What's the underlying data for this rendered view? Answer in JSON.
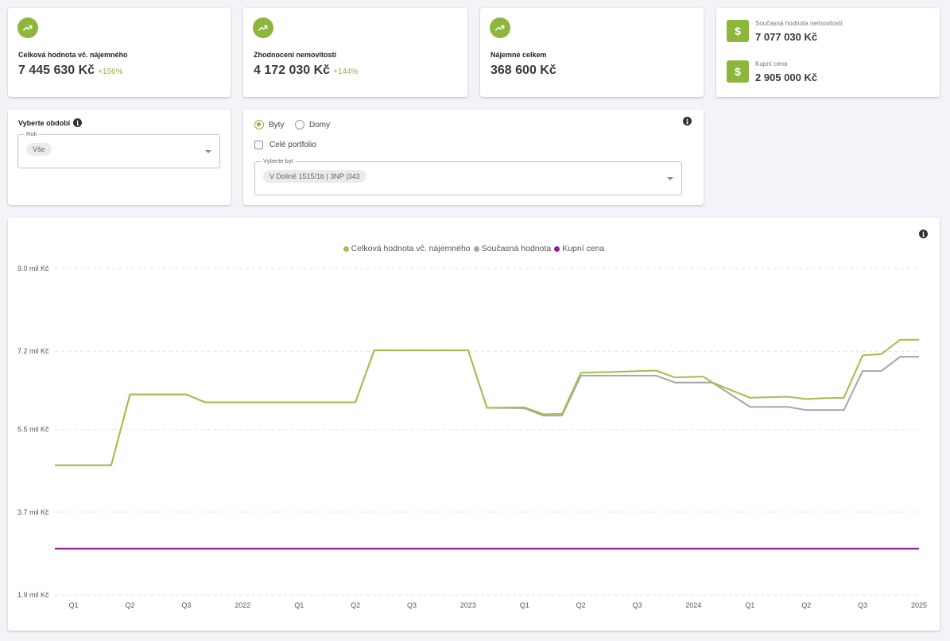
{
  "kpi_cards": [
    {
      "label": "Celková hodnota vč. nájemného",
      "value": "7 445 630 Kč",
      "change": "+156%"
    },
    {
      "label": "Zhodnocení nemovitostí",
      "value": "4 172 030 Kč",
      "change": "+144%"
    },
    {
      "label": "Nájemné celkem",
      "value": "368 600 Kč",
      "change": ""
    }
  ],
  "summary": {
    "current_label": "Současná hodnota nemovitostí",
    "current_value": "7 077 030 Kč",
    "purchase_label": "Kupní cena",
    "purchase_value": "2 905 000 Kč"
  },
  "period": {
    "title": "Vyberte období",
    "field_label": "Rok",
    "selected": "Vše"
  },
  "property_filter": {
    "type_options": [
      {
        "label": "Byty",
        "selected": true
      },
      {
        "label": "Domy",
        "selected": false
      }
    ],
    "portfolio_label": "Celé portfolio",
    "portfolio_checked": false,
    "field_label": "Vyberte byt",
    "selected": "V Dolině 1515/1b | 3NP |343"
  },
  "colors": {
    "accent": "#8cb63c",
    "total_series": "#9cc34a",
    "current_series": "#a6a6a6",
    "purchase_series": "#9b1b9b"
  },
  "icons": {
    "kpi": "trending-up-icon",
    "summary": "dollar-icon",
    "info": "info-icon",
    "select": "chevron-down-icon"
  },
  "chart_data": {
    "type": "line",
    "title": "",
    "xlabel": "",
    "ylabel": "",
    "y_ticks": [
      "9.0 mil Kč",
      "7.2 mil Kč",
      "5.5 mil Kč",
      "3.7 mil Kč",
      "1.9 mil Kč"
    ],
    "y_tick_values": [
      9.0,
      7.2,
      5.5,
      3.7,
      1.9
    ],
    "ylim": [
      1.9,
      9.0
    ],
    "x_ticks": [
      "Q1",
      "Q2",
      "Q3",
      "2022",
      "Q1",
      "Q2",
      "Q3",
      "2023",
      "Q1",
      "Q2",
      "Q3",
      "2024",
      "Q1",
      "Q2",
      "Q3",
      "2025"
    ],
    "x_tick_positions": [
      1,
      4,
      7,
      10,
      13,
      16,
      19,
      22,
      25,
      28,
      31,
      34,
      37,
      40,
      43,
      46
    ],
    "grid": true,
    "legend_position": "top-center",
    "x": [
      0,
      3,
      4,
      7,
      8,
      16,
      17,
      22,
      23,
      25,
      26,
      27,
      28,
      32,
      33,
      34.5,
      35,
      37,
      38,
      39,
      40,
      41,
      42,
      43,
      44,
      45,
      46
    ],
    "series": [
      {
        "name": "Celková hodnota vč. nájemného",
        "values": [
          4.72,
          4.72,
          6.26,
          6.26,
          6.09,
          6.09,
          7.22,
          7.22,
          5.97,
          5.98,
          5.83,
          5.84,
          6.73,
          6.78,
          6.63,
          6.65,
          6.52,
          6.19,
          6.2,
          6.21,
          6.16,
          6.18,
          6.19,
          7.11,
          7.14,
          7.45,
          7.45
        ]
      },
      {
        "name": "Současná hodnota",
        "values": [
          4.72,
          4.72,
          6.26,
          6.26,
          6.09,
          6.09,
          7.22,
          7.22,
          5.97,
          5.96,
          5.8,
          5.8,
          6.67,
          6.67,
          6.52,
          6.52,
          6.52,
          5.99,
          5.99,
          5.99,
          5.92,
          5.92,
          5.92,
          6.77,
          6.77,
          7.08,
          7.08
        ]
      },
      {
        "name": "Kupní cena",
        "values": [
          2.905,
          2.905,
          2.905,
          2.905,
          2.905,
          2.905,
          2.905,
          2.905,
          2.905,
          2.905,
          2.905,
          2.905,
          2.905,
          2.905,
          2.905,
          2.905,
          2.905,
          2.905,
          2.905,
          2.905,
          2.905,
          2.905,
          2.905,
          2.905,
          2.905,
          2.905,
          2.905
        ]
      }
    ]
  }
}
